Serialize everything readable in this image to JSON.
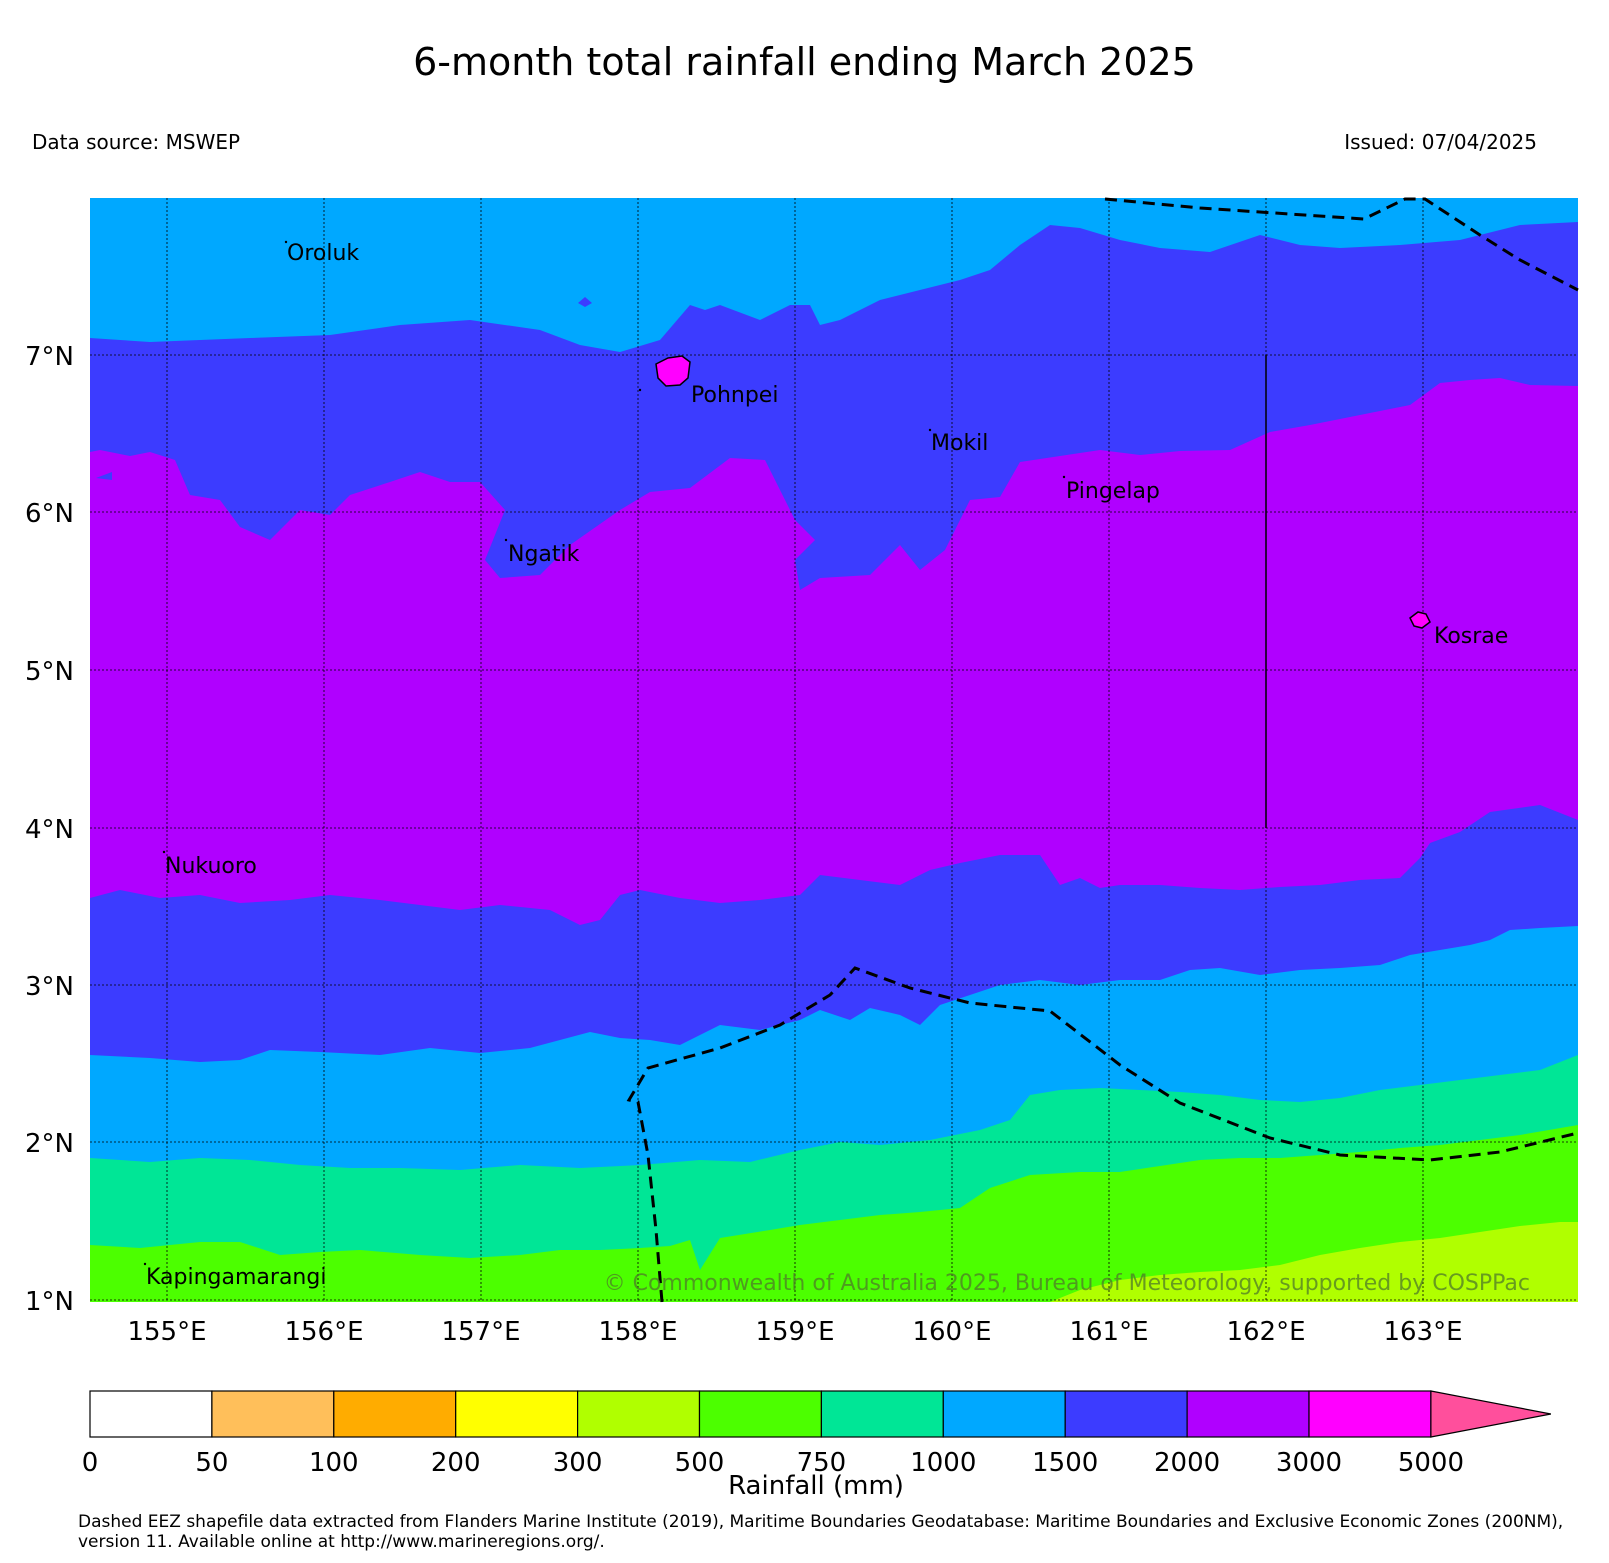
{
  "title": "6-month total rainfall ending March 2025",
  "data_source": "Data source: MSWEP",
  "issued": "Issued: 07/04/2025",
  "lat_labels": [
    "7°N",
    "6°N",
    "5°N",
    "4°N",
    "3°N",
    "2°N",
    "1°N"
  ],
  "lon_labels": [
    "155°E",
    "156°E",
    "157°E",
    "158°E",
    "159°E",
    "160°E",
    "161°E",
    "162°E",
    "163°E"
  ],
  "places": [
    {
      "name": "Oroluk"
    },
    {
      "name": "Pohnpei"
    },
    {
      "name": "Mokil"
    },
    {
      "name": "Pingelap"
    },
    {
      "name": "Ngatik"
    },
    {
      "name": "Kosrae"
    },
    {
      "name": "Nukuoro"
    },
    {
      "name": "Kapingamarangi"
    }
  ],
  "copyright": "© Commonwealth of Australia 2025, Bureau of Meteorology, supported by COSPPac",
  "legend": {
    "title": "Rainfall (mm)",
    "ticks": [
      "0",
      "50",
      "100",
      "200",
      "300",
      "500",
      "750",
      "1000",
      "1500",
      "2000",
      "3000",
      "5000"
    ],
    "colors": [
      "#ffffff",
      "#ffbf5a",
      "#ffac00",
      "#ffff00",
      "#b0ff00",
      "#4cff00",
      "#00e696",
      "#00a8ff",
      "#3c3cff",
      "#b000ff",
      "#ff00ff",
      "#ff4f9c"
    ]
  },
  "footer": "Dashed EEZ shapefile data extracted from Flanders Marine Institute (2019), Maritime Boundaries Geodatabase: Maritime Boundaries and Exclusive Economic Zones (200NM), version 11. Available online at http://www.marineregions.org/."
}
